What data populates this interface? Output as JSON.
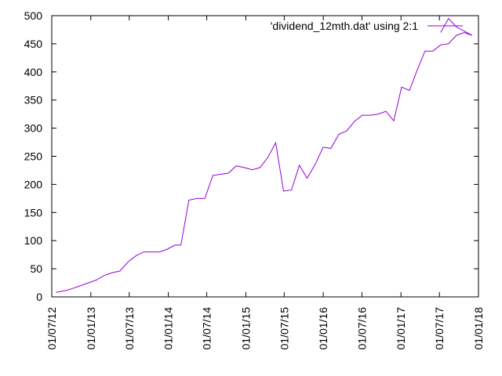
{
  "chart_data": {
    "type": "line",
    "title": "",
    "xlabel": "",
    "ylabel": "",
    "ylim": [
      0,
      500
    ],
    "xlim": [
      "2012-07-01",
      "2018-01-01"
    ],
    "yticks": [
      0,
      50,
      100,
      150,
      200,
      250,
      300,
      350,
      400,
      450,
      500
    ],
    "ytick_labels": [
      "0",
      "50",
      "100",
      "150",
      "200",
      "250",
      "300",
      "350",
      "400",
      "450",
      "500"
    ],
    "xticks": [
      "2012-07-01",
      "2013-01-01",
      "2013-07-01",
      "2014-01-01",
      "2014-07-01",
      "2015-01-01",
      "2015-07-01",
      "2016-01-01",
      "2016-07-01",
      "2017-01-01",
      "2017-07-01",
      "2018-01-01"
    ],
    "xtick_labels": [
      "01/07/12",
      "01/01/13",
      "01/07/13",
      "01/01/14",
      "01/07/14",
      "01/01/15",
      "01/07/15",
      "01/01/16",
      "01/07/16",
      "01/01/17",
      "01/07/17",
      "01/01/18"
    ],
    "grid": false,
    "legend_position": "top-right",
    "colors": {
      "series": "#9400d3",
      "axis": "#000000"
    },
    "series": [
      {
        "name": "'dividend_12mth.dat' using 2:1",
        "x": [
          "2012-07-21",
          "2012-09-01",
          "2012-10-08",
          "2012-11-14",
          "2012-12-20",
          "2013-01-27",
          "2013-03-05",
          "2013-04-12",
          "2013-05-18",
          "2013-06-25",
          "2013-08-01",
          "2013-09-07",
          "2013-10-14",
          "2013-11-21",
          "2013-12-28",
          "2014-02-01",
          "2014-03-01",
          "2014-04-08",
          "2014-05-15",
          "2014-06-22",
          "2014-07-30",
          "2014-09-05",
          "2014-10-11",
          "2014-11-17",
          "2014-12-24",
          "2015-02-01",
          "2015-03-09",
          "2015-04-15",
          "2015-05-22",
          "2015-06-28",
          "2015-08-04",
          "2015-09-10",
          "2015-10-17",
          "2015-11-23",
          "2015-12-31",
          "2016-02-06",
          "2016-03-14",
          "2016-04-20",
          "2016-05-27",
          "2016-07-03",
          "2016-08-09",
          "2016-09-15",
          "2016-10-22",
          "2016-11-28",
          "2017-01-04",
          "2017-02-10",
          "2017-03-17",
          "2017-04-24",
          "2017-05-31",
          "2017-07-07",
          "2017-08-13",
          "2017-09-19",
          "2017-10-26",
          "2017-12-02",
          "2017-09-19",
          "2017-08-13",
          "2017-07-07"
        ],
        "y": [
          8,
          11,
          15,
          20,
          25,
          30,
          38,
          43,
          46,
          62,
          73,
          80,
          80,
          80,
          85,
          92,
          92,
          172,
          175,
          175,
          216,
          218,
          220,
          233,
          230,
          226,
          230,
          248,
          274,
          188,
          190,
          234,
          211,
          235,
          266,
          264,
          289,
          295,
          312,
          323,
          323,
          325,
          330,
          313,
          373,
          367,
          402,
          437,
          437,
          448,
          450,
          465,
          470,
          465,
          480,
          495,
          470
        ]
      }
    ]
  }
}
